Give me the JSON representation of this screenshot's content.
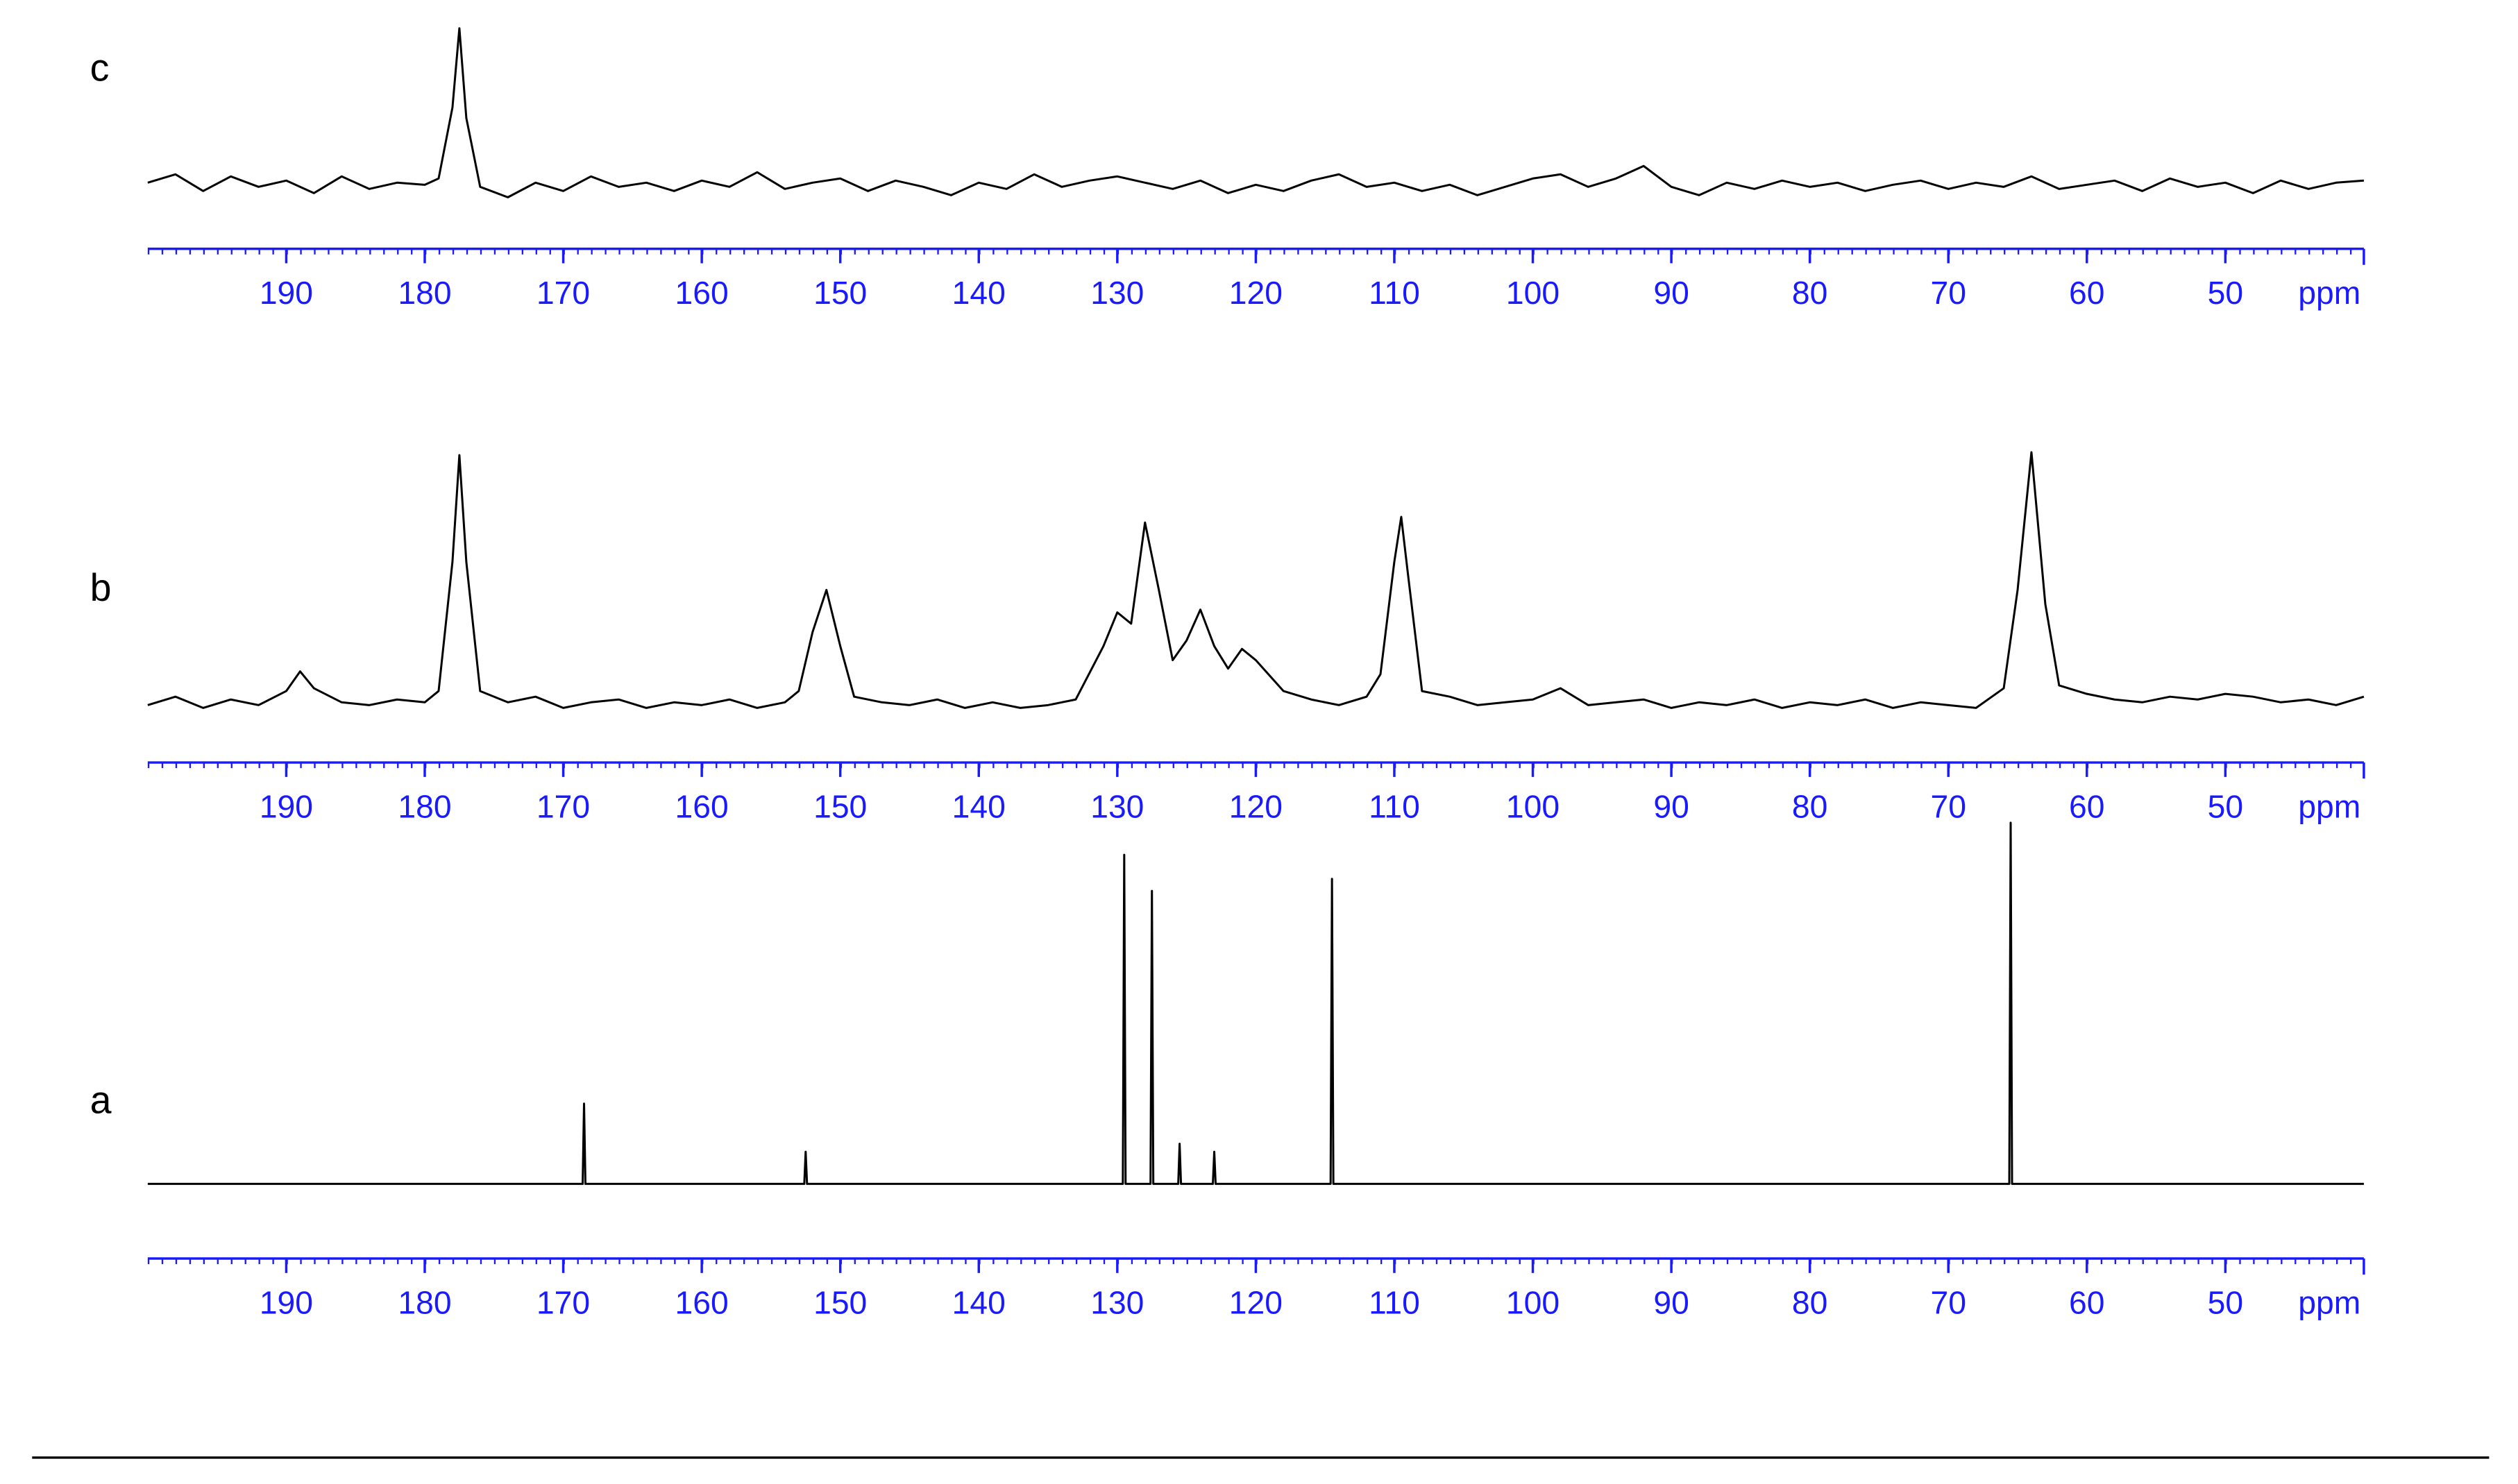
{
  "chart_data": [
    {
      "type": "line",
      "label": "c",
      "xlabel": "ppm",
      "color": "#000000",
      "xlim": [
        200,
        40
      ],
      "ylim": [
        0,
        100
      ],
      "xticks": [
        190,
        180,
        170,
        160,
        150,
        140,
        130,
        120,
        110,
        100,
        90,
        80,
        70,
        60,
        50
      ],
      "x": [
        200,
        198,
        196,
        194,
        192,
        190,
        188,
        186,
        184,
        182,
        180,
        179,
        178,
        177.5,
        177,
        176,
        174,
        172,
        170,
        168,
        166,
        164,
        162,
        160,
        158,
        156,
        154,
        152,
        150,
        148,
        146,
        144,
        142,
        140,
        138,
        136,
        134,
        132,
        130,
        128,
        126,
        124,
        122,
        120,
        118,
        116,
        114,
        112,
        110,
        108,
        106,
        104,
        102,
        100,
        98,
        96,
        94,
        92,
        90,
        88,
        86,
        84,
        82,
        80,
        78,
        76,
        74,
        72,
        70,
        68,
        66,
        64,
        62,
        60,
        58,
        56,
        54,
        52,
        50,
        48,
        46,
        44,
        42,
        40
      ],
      "values": [
        24,
        28,
        20,
        27,
        22,
        25,
        19,
        27,
        21,
        24,
        23,
        26,
        60,
        98,
        55,
        22,
        17,
        24,
        20,
        27,
        22,
        24,
        20,
        25,
        22,
        29,
        21,
        24,
        26,
        20,
        25,
        22,
        18,
        24,
        21,
        28,
        22,
        25,
        27,
        24,
        21,
        25,
        19,
        23,
        20,
        25,
        28,
        22,
        24,
        20,
        23,
        18,
        22,
        26,
        28,
        22,
        26,
        32,
        22,
        18,
        24,
        21,
        25,
        22,
        24,
        20,
        23,
        25,
        21,
        24,
        22,
        27,
        21,
        23,
        25,
        20,
        26,
        22,
        24,
        19,
        25,
        21,
        24,
        25
      ]
    },
    {
      "type": "line",
      "label": "b",
      "xlabel": "ppm",
      "color": "#000000",
      "xlim": [
        200,
        40
      ],
      "ylim": [
        0,
        100
      ],
      "xticks": [
        190,
        180,
        170,
        160,
        150,
        140,
        130,
        120,
        110,
        100,
        90,
        80,
        70,
        60,
        50
      ],
      "x": [
        200,
        198,
        196,
        194,
        192,
        190,
        189,
        188,
        186,
        184,
        182,
        180,
        179,
        178,
        177.5,
        177,
        176,
        174,
        172,
        170,
        168,
        166,
        164,
        162,
        160,
        158,
        156,
        154,
        153,
        152,
        151,
        150,
        149,
        147,
        145,
        143,
        141,
        139,
        137,
        135,
        133,
        131,
        130,
        129,
        128,
        127,
        126,
        125,
        124,
        123,
        122,
        121,
        120,
        118,
        116,
        114,
        112,
        111,
        110,
        109.5,
        109,
        108,
        106,
        104,
        102,
        100,
        98,
        96,
        94,
        92,
        90,
        88,
        86,
        84,
        82,
        80,
        78,
        76,
        74,
        72,
        70,
        68,
        66,
        65,
        64,
        63,
        62,
        60,
        58,
        56,
        54,
        52,
        50,
        48,
        46,
        44,
        42,
        40
      ],
      "values": [
        9,
        12,
        8,
        11,
        9,
        14,
        21,
        15,
        10,
        9,
        11,
        10,
        14,
        60,
        98,
        60,
        14,
        10,
        12,
        8,
        10,
        11,
        8,
        10,
        9,
        11,
        8,
        10,
        14,
        35,
        50,
        30,
        12,
        10,
        9,
        11,
        8,
        10,
        8,
        9,
        11,
        30,
        42,
        38,
        74,
        50,
        25,
        32,
        43,
        30,
        22,
        29,
        25,
        14,
        11,
        9,
        12,
        20,
        60,
        76,
        55,
        14,
        12,
        9,
        10,
        11,
        15,
        9,
        10,
        11,
        8,
        10,
        9,
        11,
        8,
        10,
        9,
        11,
        8,
        10,
        9,
        8,
        15,
        50,
        99,
        45,
        16,
        13,
        11,
        10,
        12,
        11,
        13,
        12,
        10,
        11,
        9,
        12
      ]
    },
    {
      "type": "line",
      "label": "a",
      "xlabel": "ppm",
      "color": "#000000",
      "xlim": [
        200,
        40
      ],
      "ylim": [
        0,
        100
      ],
      "xticks": [
        190,
        180,
        170,
        160,
        150,
        140,
        130,
        120,
        110,
        100,
        90,
        80,
        70,
        60,
        50
      ],
      "x": [
        200,
        169,
        168.6,
        168.5,
        168.4,
        153,
        152.6,
        152.5,
        152.4,
        130,
        129.6,
        129.5,
        129.4,
        127.6,
        127.5,
        127.4,
        125.6,
        125.5,
        125.4,
        123.1,
        123,
        122.9,
        114.6,
        114.5,
        114.4,
        65.6,
        65.5,
        65.4,
        40
      ],
      "values": [
        9,
        9,
        9,
        29,
        9,
        9,
        9,
        17,
        9,
        9,
        9,
        91,
        9,
        9,
        82,
        9,
        9,
        19,
        9,
        9,
        17,
        9,
        9,
        85,
        9,
        9,
        99,
        9,
        9
      ]
    }
  ]
}
